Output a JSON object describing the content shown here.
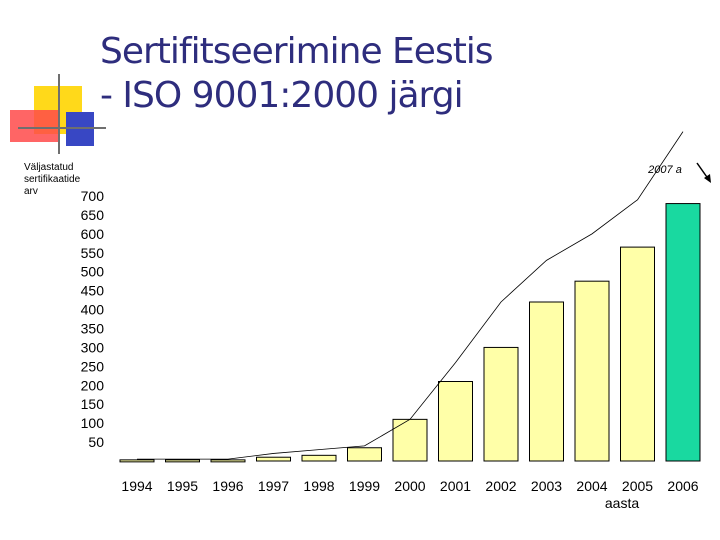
{
  "title_lines": [
    "Sertifitseerimine Eestis",
    "- ISO 9001:2000 järgi"
  ],
  "chart_data": {
    "type": "bar",
    "ylabel_lines": [
      "Väljastatud",
      "sertifikaatide",
      "arv"
    ],
    "xlabel": "aasta",
    "categories": [
      "1994",
      "1995",
      "1996",
      "1997",
      "1998",
      "1999",
      "2000",
      "2001",
      "2002",
      "2003",
      "2004",
      "2005",
      "2006"
    ],
    "values": [
      3,
      3,
      3,
      10,
      15,
      35,
      110,
      210,
      300,
      420,
      475,
      565,
      680
    ],
    "trend_values": [
      5,
      5,
      5,
      20,
      30,
      40,
      110,
      260,
      420,
      530,
      600,
      690,
      870
    ],
    "yticks": [
      700,
      650,
      600,
      550,
      500,
      450,
      400,
      350,
      300,
      250,
      200,
      150,
      100,
      50
    ],
    "ylim": [
      0,
      700
    ],
    "bar_color": "#ffffa8",
    "highlight_index": 12,
    "highlight_color": "#19d9a0",
    "annotation": "2007 a",
    "grid": false
  },
  "colors": {
    "title": "#2e2d7d",
    "bar_stroke": "#000000"
  }
}
